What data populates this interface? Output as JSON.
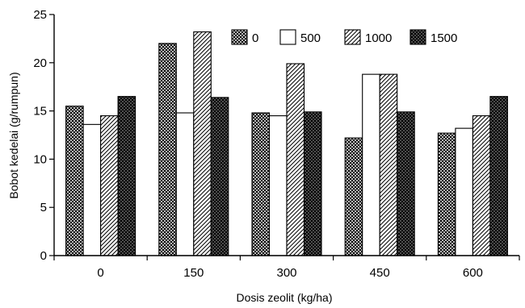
{
  "chart_data": {
    "type": "bar",
    "title": "",
    "xlabel": "Dosis zeolit (kg/ha)",
    "ylabel": "Bobot kedelai (g/rumpun)",
    "categories": [
      "0",
      "150",
      "300",
      "450",
      "600"
    ],
    "ylim": [
      0,
      25
    ],
    "yticks": [
      "0",
      "5",
      "10",
      "15",
      "20",
      "25"
    ],
    "series": [
      {
        "name": "0",
        "pattern": "crosshatch-dense",
        "values": [
          15.5,
          22.0,
          14.8,
          12.2,
          12.7
        ]
      },
      {
        "name": "500",
        "pattern": "white",
        "values": [
          13.6,
          14.8,
          14.5,
          18.8,
          13.2
        ]
      },
      {
        "name": "1000",
        "pattern": "diagonal-hatch",
        "values": [
          14.5,
          23.2,
          19.9,
          18.8,
          14.5
        ]
      },
      {
        "name": "1500",
        "pattern": "crosshatch-dark",
        "values": [
          16.5,
          16.4,
          14.9,
          14.9,
          16.5
        ]
      }
    ],
    "legend_position": "top-right",
    "grid": false
  }
}
